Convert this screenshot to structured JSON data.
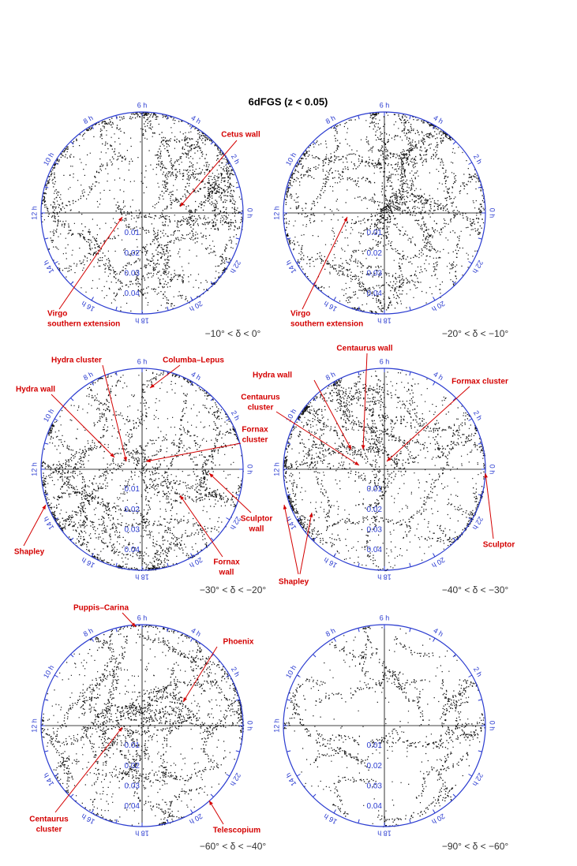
{
  "title": "6dFGS    (z < 0.05)",
  "hour_labels": [
    {
      "value": 0,
      "label": "0 h"
    },
    {
      "value": 2,
      "label": "2 h"
    },
    {
      "value": 4,
      "label": "4 h"
    },
    {
      "value": 6,
      "label": "6 h"
    },
    {
      "value": 8,
      "label": "8 h"
    },
    {
      "value": 10,
      "label": "10 h"
    },
    {
      "value": 12,
      "label": "12 h"
    },
    {
      "value": 14,
      "label": "14 h"
    },
    {
      "value": 16,
      "label": "16 h"
    },
    {
      "value": 18,
      "label": "18 h"
    },
    {
      "value": 20,
      "label": "20 h"
    },
    {
      "value": 22,
      "label": "22 h"
    }
  ],
  "zlim": [
    0,
    0.05
  ],
  "zticks": [
    0.01,
    0.02,
    0.03,
    0.04
  ],
  "panels": [
    {
      "dec_range": "−10° < δ < 0°",
      "annotations": [
        {
          "lines": [
            "Cetus wall"
          ]
        },
        {
          "lines": [
            "Virgo",
            "southern extension"
          ]
        }
      ]
    },
    {
      "dec_range": "−20° < δ < −10°",
      "annotations": [
        {
          "lines": [
            "Virgo",
            "southern extension"
          ]
        }
      ]
    },
    {
      "dec_range": "−30° < δ < −20°",
      "annotations": [
        {
          "lines": [
            "Hydra cluster"
          ]
        },
        {
          "lines": [
            "Columba–Lepus"
          ]
        },
        {
          "lines": [
            "Hydra wall"
          ]
        },
        {
          "lines": [
            "Fornax",
            "cluster"
          ]
        },
        {
          "lines": [
            "Sculptor",
            "wall"
          ]
        },
        {
          "lines": [
            "Fornax",
            "wall"
          ]
        },
        {
          "lines": [
            "Shapley"
          ]
        }
      ]
    },
    {
      "dec_range": "−40° < δ < −30°",
      "annotations": [
        {
          "lines": [
            "Centaurus wall"
          ]
        },
        {
          "lines": [
            "Hydra wall"
          ]
        },
        {
          "lines": [
            "Centaurus",
            "cluster"
          ]
        },
        {
          "lines": [
            "Formax cluster"
          ]
        },
        {
          "lines": [
            "Sculptor"
          ]
        },
        {
          "lines": [
            "Shapley"
          ]
        }
      ]
    },
    {
      "dec_range": "−60° < δ < −40°",
      "annotations": [
        {
          "lines": [
            "Puppis–Carina"
          ]
        },
        {
          "lines": [
            "Phoenix"
          ]
        },
        {
          "lines": [
            "Centaurus",
            "cluster"
          ]
        },
        {
          "lines": [
            "Telescopium"
          ]
        }
      ]
    },
    {
      "dec_range": "−90° < δ < −60°",
      "annotations": []
    }
  ]
}
